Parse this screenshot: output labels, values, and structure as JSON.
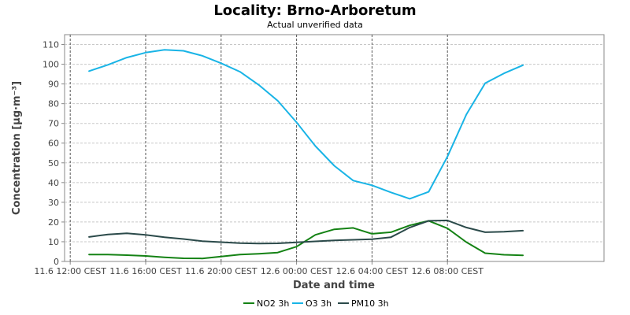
{
  "chart_data": {
    "type": "line",
    "title": "Locality: Brno-Arboretum",
    "subtitle": "Actual unverified data",
    "xlabel": "Date and time",
    "ylabel": "Concentration [µg·m⁻³]",
    "ylim": [
      0,
      115
    ],
    "y_ticks": [
      0,
      10,
      20,
      30,
      40,
      50,
      60,
      70,
      80,
      90,
      100,
      110
    ],
    "x_hours": [
      0,
      1,
      2,
      3,
      4,
      5,
      6,
      7,
      8,
      9,
      10,
      11,
      12,
      13,
      14,
      15,
      16,
      17,
      18,
      19,
      20,
      21,
      22,
      23,
      24,
      25,
      26
    ],
    "x_range_hours": [
      -1.3,
      27.3
    ],
    "x_ticks": [
      {
        "hour": -1,
        "label": "11.6 12:00 CEST"
      },
      {
        "hour": 3,
        "label": "11.6 16:00 CEST"
      },
      {
        "hour": 7,
        "label": "11.6 20:00 CEST"
      },
      {
        "hour": 11,
        "label": "12.6 00:00 CEST"
      },
      {
        "hour": 15,
        "label": "12.6 04:00 CEST"
      },
      {
        "hour": 19,
        "label": "12.6 08:00 CEST"
      }
    ],
    "grid": true,
    "legend_position": "bottom",
    "series": [
      {
        "name": "NO2 3h",
        "color": "#148214",
        "values": [
          3.5,
          3.5,
          3.2,
          2.8,
          2.1,
          1.6,
          1.5,
          2.5,
          3.5,
          3.9,
          4.5,
          7.5,
          13.5,
          16.3,
          17,
          14,
          14.8,
          18.3,
          20.6,
          16.8,
          9.8,
          4.2,
          3.4,
          3.1,
          null,
          null,
          null
        ]
      },
      {
        "name": "O3 3h",
        "color": "#19b4e6",
        "values": [
          96.5,
          99.7,
          103.4,
          105.9,
          107.3,
          106.8,
          104.3,
          100.5,
          96.2,
          89.5,
          81.5,
          70.5,
          58.5,
          48.5,
          41,
          38.6,
          35,
          31.8,
          35.3,
          53.2,
          74.5,
          90.4,
          95.4,
          99.5,
          null,
          null,
          null
        ]
      },
      {
        "name": "PM10 3h",
        "color": "#2b4a4a",
        "values": [
          12.4,
          13.7,
          14.3,
          13.5,
          12.3,
          11.4,
          10.3,
          9.8,
          9.3,
          9.1,
          9.2,
          9.7,
          10.2,
          10.7,
          11,
          11.3,
          12.3,
          17.2,
          20.6,
          20.8,
          17.2,
          14.8,
          15.1,
          15.6,
          null,
          null,
          null
        ]
      }
    ]
  }
}
